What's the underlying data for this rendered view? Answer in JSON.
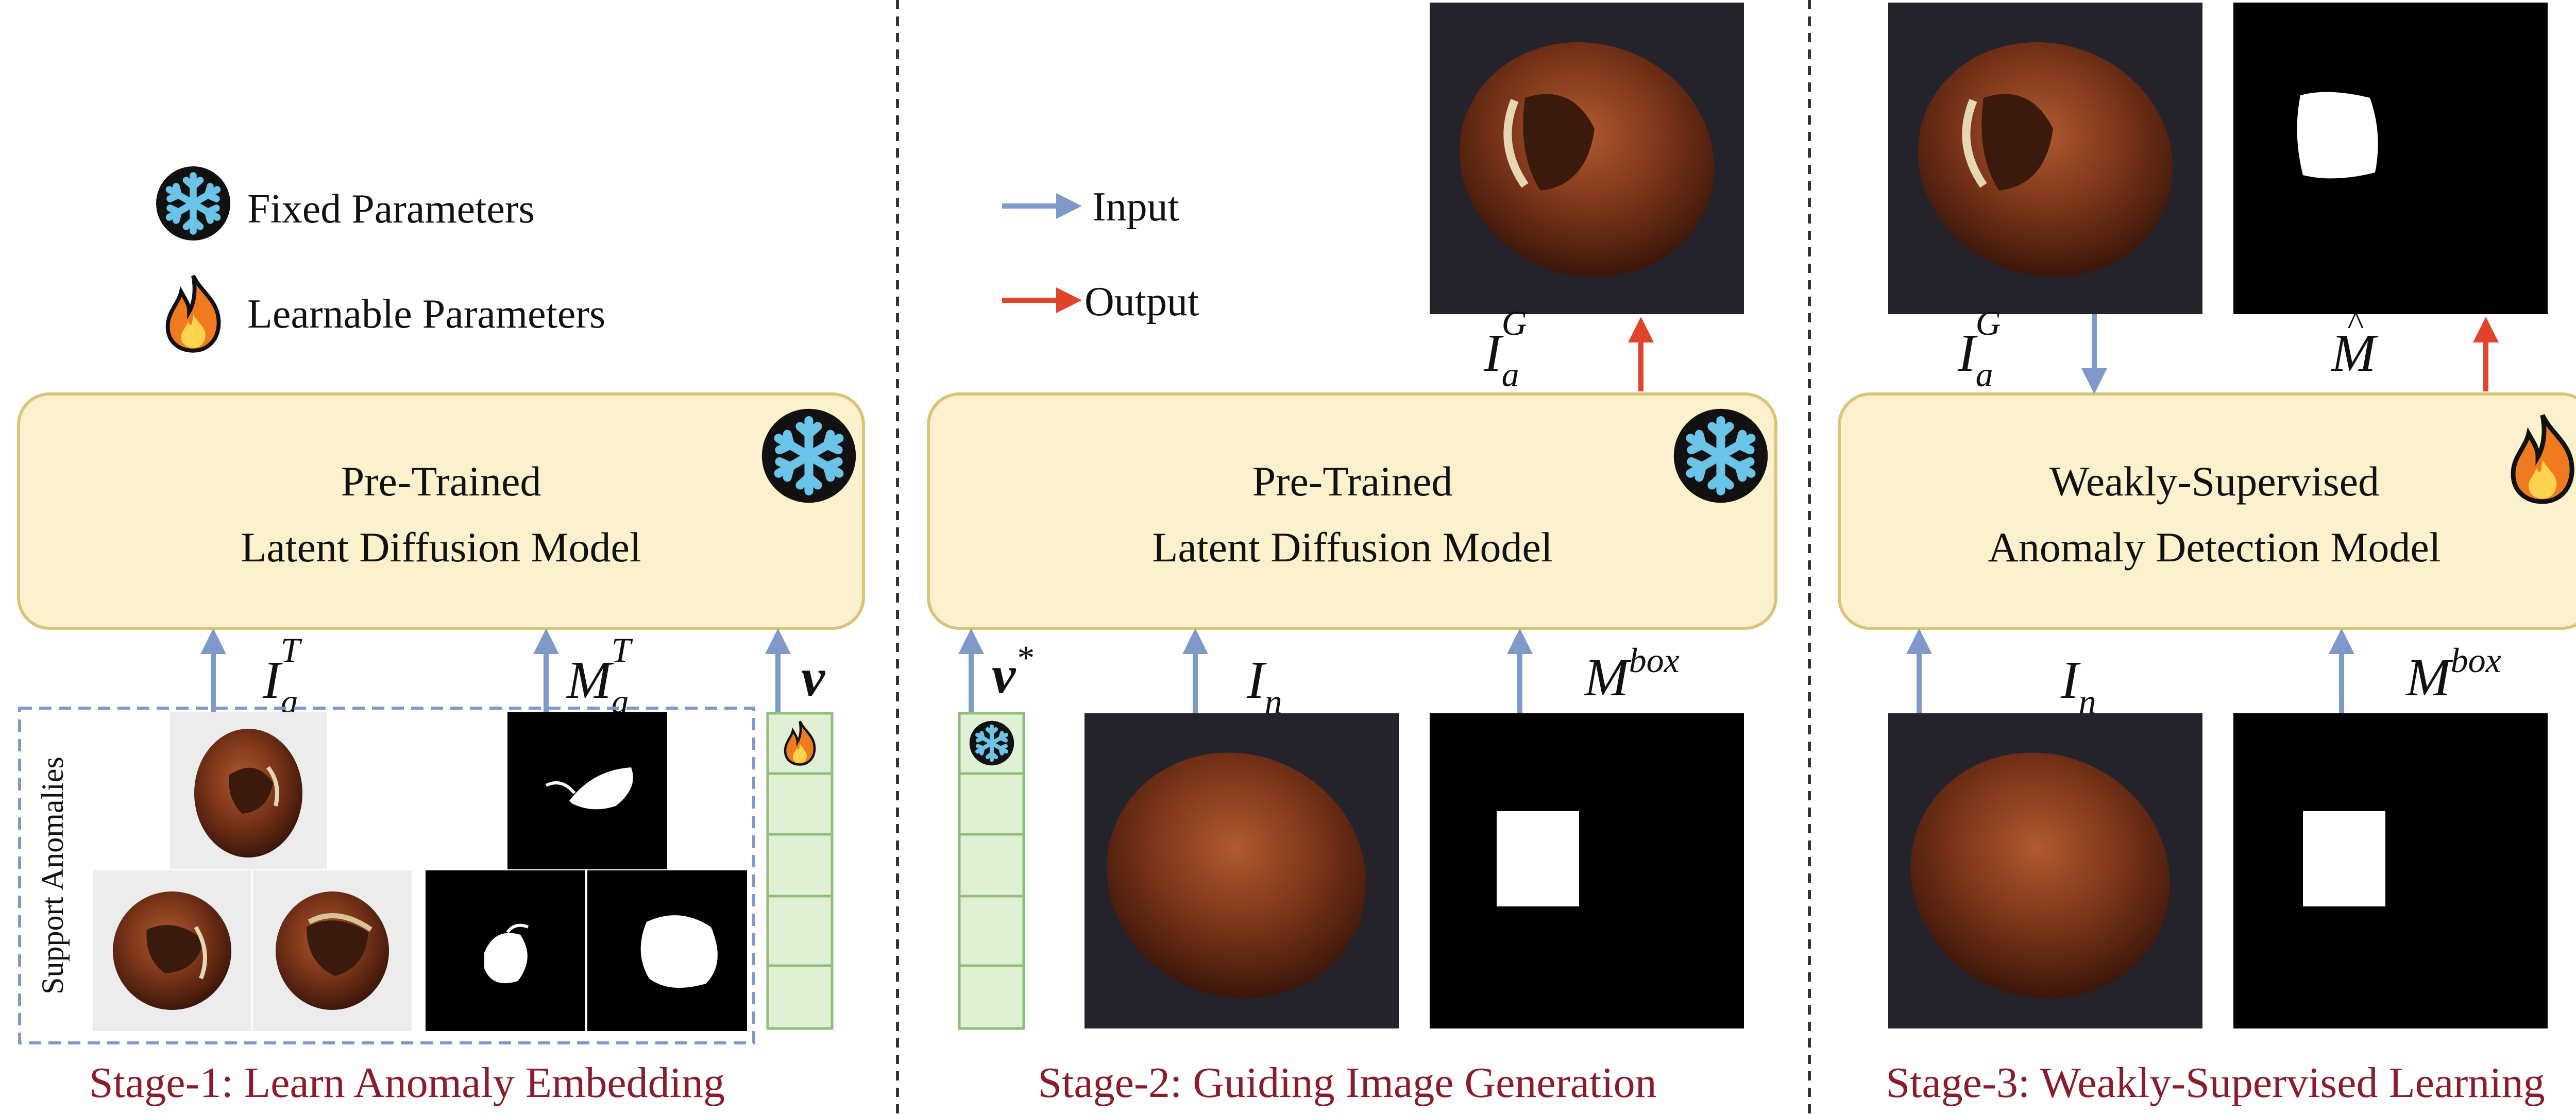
{
  "legend": {
    "fixed": "Fixed Parameters",
    "learnable": "Learnable Parameters",
    "input": "Input",
    "output": "Output"
  },
  "colors": {
    "box_fill": "#fbf1cc",
    "box_stroke": "#d9c47a",
    "input_arrow": "#7f99c9",
    "output_arrow": "#e0452c",
    "stage_text": "#8a1c2b",
    "embedding_fill": "#dff0d5",
    "embedding_stroke": "#8fbf79",
    "snowflake": "#6ac4e8",
    "flame": "#f07a1f"
  },
  "icons": {
    "fixed": "snowflake-icon",
    "learnable": "flame-icon"
  },
  "stage1": {
    "model_line1": "Pre-Trained",
    "model_line2": "Latent Diffusion Model",
    "image_input_base": "I",
    "image_input_sub": "a",
    "image_input_sup": "T",
    "mask_input_base": "M",
    "mask_input_sub": "a",
    "mask_input_sup": "T",
    "embedding_label": "v",
    "support_label": "Support Anomalies",
    "caption": "Stage-1: Learn Anomaly Embedding"
  },
  "stage2": {
    "model_line1": "Pre-Trained",
    "model_line2": "Latent Diffusion Model",
    "embedding_label": "v",
    "embedding_sup": "*",
    "image_input_base": "I",
    "image_input_sub": "n",
    "mask_input_base": "M",
    "mask_input_sup": "box",
    "output_base": "I",
    "output_sub": "a",
    "output_sup": "G",
    "caption": "Stage-2: Guiding Image Generation"
  },
  "stage3": {
    "model_line1": "Weakly-Supervised",
    "model_line2": "Anomaly Detection Model",
    "input_gen_base": "I",
    "input_gen_sub": "a",
    "input_gen_sup": "G",
    "output_mask_base": "M",
    "output_mask_hat": "^",
    "image_input_base": "I",
    "image_input_sub": "n",
    "mask_input_base": "M",
    "mask_input_sup": "box",
    "caption": "Stage-3: Weakly-Supervised Learning"
  }
}
